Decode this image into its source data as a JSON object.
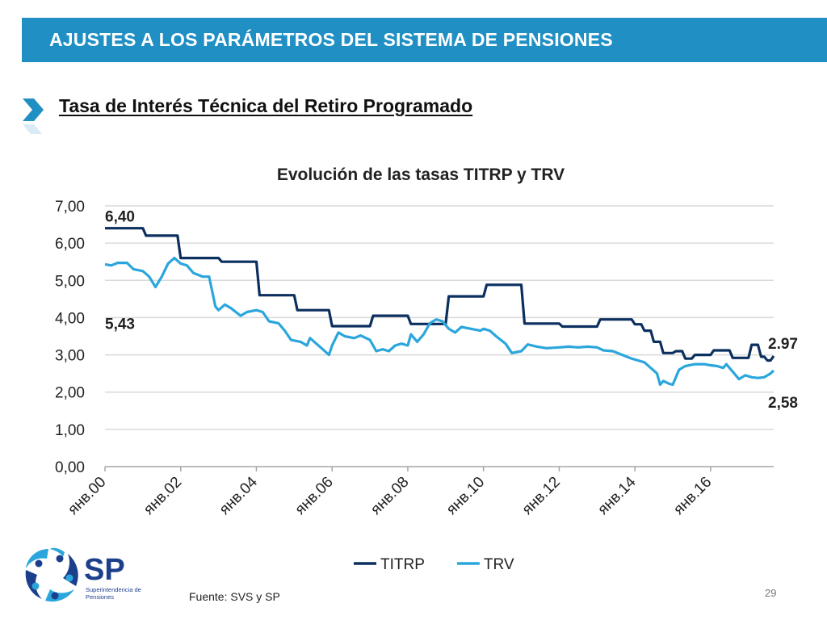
{
  "header": {
    "title": "AJUSTES A LOS PARÁMETROS DEL SISTEMA DE PENSIONES"
  },
  "subtitle": "Tasa de Interés Técnica del Retiro Programado",
  "footer": {
    "source": "Fuente: SVS y SP",
    "page_number": "29"
  },
  "logo": {
    "text": "SP",
    "caption_line1": "Superintendencia de",
    "caption_line2": "Pensiones"
  },
  "colors": {
    "header_bar": "#1f8fc4",
    "titrp": "#0b2f5e",
    "trv": "#2aa6dc",
    "gridline": "#d9d9d9",
    "logo_navy": "#1c3f8c",
    "logo_blue": "#2aa6dc"
  },
  "chart_data": {
    "type": "line",
    "title": "Evolución de las tasas TITRP y TRV",
    "xlabel": "",
    "ylabel": "",
    "ylim": [
      0,
      7
    ],
    "yticks": [
      "0,00",
      "1,00",
      "2,00",
      "3,00",
      "4,00",
      "5,00",
      "6,00",
      "7,00"
    ],
    "xlim": [
      "2000-01",
      "2017-09"
    ],
    "xticks": [
      {
        "x": "2000-01",
        "label": "янв.00"
      },
      {
        "x": "2002-01",
        "label": "янв.02"
      },
      {
        "x": "2004-01",
        "label": "янв.04"
      },
      {
        "x": "2006-01",
        "label": "янв.06"
      },
      {
        "x": "2008-01",
        "label": "янв.08"
      },
      {
        "x": "2010-01",
        "label": "янв.10"
      },
      {
        "x": "2012-01",
        "label": "янв.12"
      },
      {
        "x": "2014-01",
        "label": "янв.14"
      },
      {
        "x": "2016-01",
        "label": "янв.16"
      }
    ],
    "grid": true,
    "legend": "bottom",
    "series": [
      {
        "name": "TITRP",
        "color": "#0b2f5e",
        "points": [
          [
            "2000-01",
            6.4
          ],
          [
            "2001-01",
            6.4
          ],
          [
            "2001-02",
            6.2
          ],
          [
            "2001-12",
            6.2
          ],
          [
            "2002-01",
            5.6
          ],
          [
            "2003-01",
            5.6
          ],
          [
            "2003-02",
            5.5
          ],
          [
            "2004-01",
            5.5
          ],
          [
            "2004-02",
            4.6
          ],
          [
            "2005-01",
            4.6
          ],
          [
            "2005-02",
            4.2
          ],
          [
            "2005-12",
            4.2
          ],
          [
            "2006-01",
            3.77
          ],
          [
            "2007-01",
            3.77
          ],
          [
            "2007-02",
            4.05
          ],
          [
            "2008-01",
            4.05
          ],
          [
            "2008-02",
            3.83
          ],
          [
            "2009-01",
            3.83
          ],
          [
            "2009-02",
            4.57
          ],
          [
            "2010-01",
            4.57
          ],
          [
            "2010-02",
            4.88
          ],
          [
            "2011-01",
            4.88
          ],
          [
            "2011-02",
            3.84
          ],
          [
            "2012-01",
            3.84
          ],
          [
            "2012-02",
            3.76
          ],
          [
            "2013-01",
            3.76
          ],
          [
            "2013-02",
            3.95
          ],
          [
            "2013-12",
            3.95
          ],
          [
            "2014-01",
            3.82
          ],
          [
            "2014-03",
            3.82
          ],
          [
            "2014-04",
            3.65
          ],
          [
            "2014-06",
            3.65
          ],
          [
            "2014-07",
            3.35
          ],
          [
            "2014-09",
            3.35
          ],
          [
            "2014-10",
            3.05
          ],
          [
            "2015-01",
            3.05
          ],
          [
            "2015-02",
            3.1
          ],
          [
            "2015-04",
            3.1
          ],
          [
            "2015-05",
            2.9
          ],
          [
            "2015-07",
            2.9
          ],
          [
            "2015-08",
            3.0
          ],
          [
            "2016-01",
            3.0
          ],
          [
            "2016-02",
            3.12
          ],
          [
            "2016-07",
            3.12
          ],
          [
            "2016-08",
            2.92
          ],
          [
            "2017-01",
            2.92
          ],
          [
            "2017-02",
            3.27
          ],
          [
            "2017-04",
            3.27
          ],
          [
            "2017-05",
            2.95
          ],
          [
            "2017-06",
            2.95
          ],
          [
            "2017-07",
            2.85
          ],
          [
            "2017-08",
            2.85
          ],
          [
            "2017-09",
            2.97
          ]
        ]
      },
      {
        "name": "TRV",
        "color": "#2aa6dc",
        "points": [
          [
            "2000-01",
            5.43
          ],
          [
            "2000-03",
            5.4
          ],
          [
            "2000-05",
            5.47
          ],
          [
            "2000-08",
            5.47
          ],
          [
            "2000-10",
            5.3
          ],
          [
            "2001-01",
            5.25
          ],
          [
            "2001-03",
            5.1
          ],
          [
            "2001-05",
            4.82
          ],
          [
            "2001-07",
            5.1
          ],
          [
            "2001-09",
            5.45
          ],
          [
            "2001-11",
            5.6
          ],
          [
            "2002-01",
            5.45
          ],
          [
            "2002-03",
            5.4
          ],
          [
            "2002-05",
            5.2
          ],
          [
            "2002-08",
            5.1
          ],
          [
            "2002-10",
            5.1
          ],
          [
            "2002-12",
            4.3
          ],
          [
            "2003-01",
            4.2
          ],
          [
            "2003-03",
            4.35
          ],
          [
            "2003-05",
            4.25
          ],
          [
            "2003-08",
            4.05
          ],
          [
            "2003-10",
            4.15
          ],
          [
            "2004-01",
            4.2
          ],
          [
            "2004-03",
            4.15
          ],
          [
            "2004-05",
            3.9
          ],
          [
            "2004-08",
            3.85
          ],
          [
            "2004-10",
            3.65
          ],
          [
            "2004-12",
            3.4
          ],
          [
            "2005-03",
            3.35
          ],
          [
            "2005-05",
            3.25
          ],
          [
            "2005-06",
            3.45
          ],
          [
            "2005-08",
            3.3
          ],
          [
            "2005-10",
            3.15
          ],
          [
            "2005-12",
            3.0
          ],
          [
            "2006-01",
            3.25
          ],
          [
            "2006-03",
            3.6
          ],
          [
            "2006-05",
            3.5
          ],
          [
            "2006-08",
            3.45
          ],
          [
            "2006-10",
            3.52
          ],
          [
            "2007-01",
            3.4
          ],
          [
            "2007-03",
            3.1
          ],
          [
            "2007-05",
            3.15
          ],
          [
            "2007-07",
            3.1
          ],
          [
            "2007-09",
            3.25
          ],
          [
            "2007-11",
            3.3
          ],
          [
            "2008-01",
            3.25
          ],
          [
            "2008-02",
            3.55
          ],
          [
            "2008-04",
            3.35
          ],
          [
            "2008-06",
            3.55
          ],
          [
            "2008-08",
            3.85
          ],
          [
            "2008-10",
            3.95
          ],
          [
            "2008-12",
            3.9
          ],
          [
            "2009-02",
            3.7
          ],
          [
            "2009-04",
            3.6
          ],
          [
            "2009-06",
            3.75
          ],
          [
            "2009-09",
            3.7
          ],
          [
            "2009-12",
            3.65
          ],
          [
            "2010-01",
            3.7
          ],
          [
            "2010-03",
            3.65
          ],
          [
            "2010-05",
            3.5
          ],
          [
            "2010-08",
            3.3
          ],
          [
            "2010-10",
            3.05
          ],
          [
            "2011-01",
            3.1
          ],
          [
            "2011-03",
            3.28
          ],
          [
            "2011-06",
            3.22
          ],
          [
            "2011-09",
            3.18
          ],
          [
            "2012-01",
            3.2
          ],
          [
            "2012-04",
            3.22
          ],
          [
            "2012-07",
            3.2
          ],
          [
            "2012-10",
            3.22
          ],
          [
            "2013-01",
            3.2
          ],
          [
            "2013-03",
            3.12
          ],
          [
            "2013-06",
            3.1
          ],
          [
            "2013-09",
            3.0
          ],
          [
            "2013-12",
            2.9
          ],
          [
            "2014-02",
            2.85
          ],
          [
            "2014-04",
            2.8
          ],
          [
            "2014-06",
            2.65
          ],
          [
            "2014-08",
            2.5
          ],
          [
            "2014-09",
            2.2
          ],
          [
            "2014-10",
            2.3
          ],
          [
            "2014-12",
            2.22
          ],
          [
            "2015-01",
            2.2
          ],
          [
            "2015-03",
            2.6
          ],
          [
            "2015-05",
            2.7
          ],
          [
            "2015-08",
            2.75
          ],
          [
            "2015-11",
            2.75
          ],
          [
            "2016-01",
            2.72
          ],
          [
            "2016-03",
            2.7
          ],
          [
            "2016-05",
            2.65
          ],
          [
            "2016-06",
            2.75
          ],
          [
            "2016-08",
            2.55
          ],
          [
            "2016-10",
            2.35
          ],
          [
            "2016-12",
            2.45
          ],
          [
            "2017-02",
            2.4
          ],
          [
            "2017-04",
            2.38
          ],
          [
            "2017-06",
            2.4
          ],
          [
            "2017-08",
            2.5
          ],
          [
            "2017-09",
            2.58
          ]
        ]
      }
    ],
    "data_labels": [
      {
        "text": "6,40",
        "series": "TITRP",
        "x": "2000-01",
        "y": 6.4,
        "pos": "above-start"
      },
      {
        "text": "5,43",
        "series": "TRV",
        "x": "2000-01",
        "y": 5.43,
        "pos": "below-start"
      },
      {
        "text": "2.97",
        "series": "TITRP",
        "x": "2017-09",
        "y": 2.97,
        "pos": "above-end"
      },
      {
        "text": "2,58",
        "series": "TRV",
        "x": "2017-09",
        "y": 2.58,
        "pos": "below-end"
      }
    ]
  }
}
